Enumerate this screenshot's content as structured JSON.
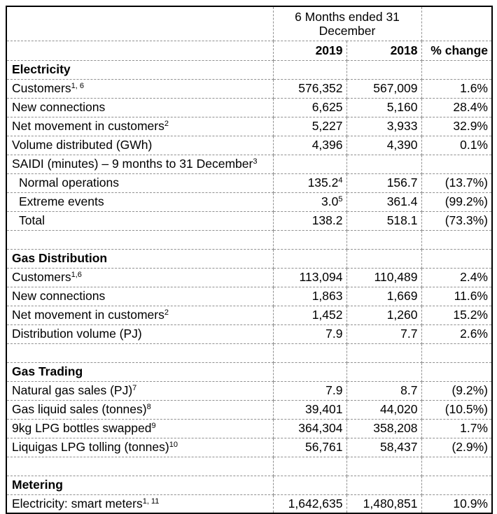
{
  "table": {
    "header": {
      "period_line1": "6 Months ended 31",
      "period_line2": "December",
      "year_2019": "2019",
      "year_2018": "2018",
      "change_label": "% change"
    },
    "rows": [
      {
        "type": "section",
        "label": "Electricity"
      },
      {
        "type": "data",
        "label": "Customers",
        "label_sup": "1, 6",
        "v2019": "576,352",
        "v2018": "567,009",
        "change": "1.6%"
      },
      {
        "type": "data",
        "label": "New connections",
        "v2019": "6,625",
        "v2018": "5,160",
        "change": "28.4%"
      },
      {
        "type": "data",
        "label": "Net movement in customers",
        "label_sup": "2",
        "v2019": "5,227",
        "v2018": "3,933",
        "change": "32.9%"
      },
      {
        "type": "data",
        "label": "Volume distributed (GWh)",
        "v2019": "4,396",
        "v2018": "4,390",
        "change": "0.1%"
      },
      {
        "type": "data",
        "label": "SAIDI (minutes) – 9 months to 31 December",
        "label_sup": "3"
      },
      {
        "type": "sub",
        "label": "Normal operations",
        "v2019": "135.2",
        "v2019_sup": "4",
        "v2018": "156.7",
        "change": "(13.7%)"
      },
      {
        "type": "sub",
        "label": "Extreme events",
        "v2019": "3.0",
        "v2019_sup": "5",
        "v2018": "361.4",
        "change": "(99.2%)"
      },
      {
        "type": "sub",
        "label": "Total",
        "v2019": "138.2",
        "v2018": "518.1",
        "change": "(73.3%)"
      },
      {
        "type": "empty"
      },
      {
        "type": "section",
        "label": "Gas Distribution"
      },
      {
        "type": "data",
        "label": "Customers",
        "label_sup": "1,6",
        "v2019": "113,094",
        "v2018": "110,489",
        "change": "2.4%"
      },
      {
        "type": "data",
        "label": "New connections",
        "v2019": "1,863",
        "v2018": "1,669",
        "change": "11.6%"
      },
      {
        "type": "data",
        "label": "Net movement in customers",
        "label_sup": "2",
        "v2019": "1,452",
        "v2018": "1,260",
        "change": "15.2%"
      },
      {
        "type": "data",
        "label": "Distribution volume (PJ)",
        "v2019": "7.9",
        "v2018": "7.7",
        "change": "2.6%"
      },
      {
        "type": "empty"
      },
      {
        "type": "section",
        "label": "Gas Trading"
      },
      {
        "type": "data",
        "label": "Natural gas sales (PJ)",
        "label_sup": "7",
        "v2019": "7.9",
        "v2018": "8.7",
        "change": "(9.2%)"
      },
      {
        "type": "data",
        "label": "Gas liquid sales (tonnes)",
        "label_sup": "8",
        "v2019": "39,401",
        "v2018": "44,020",
        "change": "(10.5%)"
      },
      {
        "type": "data",
        "label": "9kg LPG bottles swapped",
        "label_sup": "9",
        "v2019": "364,304",
        "v2018": "358,208",
        "change": "1.7%"
      },
      {
        "type": "data",
        "label": "Liquigas LPG tolling (tonnes)",
        "label_sup": "10",
        "v2019": "56,761",
        "v2018": "58,437",
        "change": "(2.9%)"
      },
      {
        "type": "empty"
      },
      {
        "type": "section",
        "label": "Metering"
      },
      {
        "type": "data",
        "label": "Electricity: smart meters",
        "label_sup": "1, 11",
        "v2019": "1,642,635",
        "v2018": "1,480,851",
        "change": "10.9%"
      }
    ]
  },
  "colors": {
    "outer_border": "#000000",
    "inner_border": "#909090",
    "text": "#000000",
    "background": "#ffffff"
  }
}
